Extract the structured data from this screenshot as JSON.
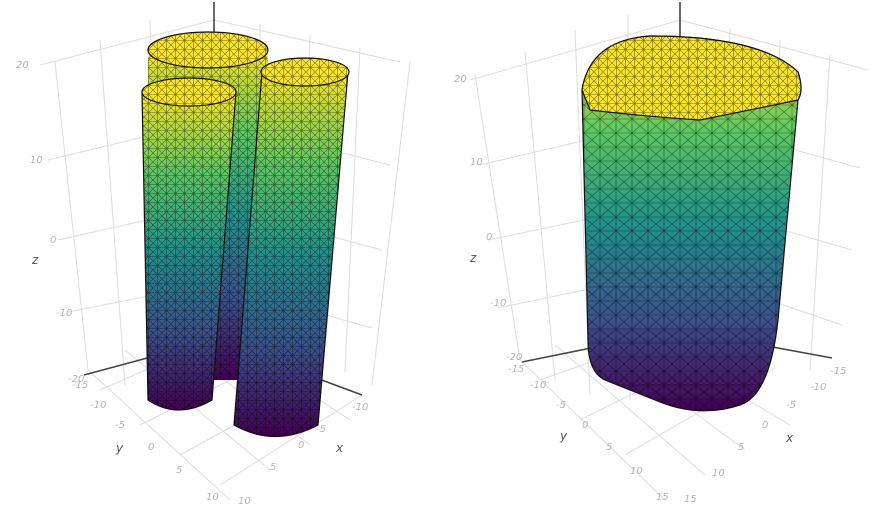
{
  "panels": [
    {
      "id": "left",
      "axes": {
        "z": {
          "label": "z",
          "ticks": [
            "20",
            "10",
            "0",
            "-10",
            "-20"
          ]
        },
        "y": {
          "label": "y",
          "ticks": [
            "-15",
            "-10",
            "-5",
            "0",
            "5",
            "10"
          ]
        },
        "x": {
          "label": "x",
          "ticks": [
            "-10",
            "-5",
            "0",
            "5",
            "10"
          ]
        }
      },
      "surface": "three cylinders",
      "colorscale": [
        "#440154",
        "#3b528b",
        "#21918c",
        "#5ec962",
        "#fde725"
      ]
    },
    {
      "id": "right",
      "axes": {
        "z": {
          "label": "z",
          "ticks": [
            "20",
            "10",
            "0",
            "-10",
            "-20"
          ]
        },
        "y": {
          "label": "y",
          "ticks": [
            "-15",
            "-10",
            "-5",
            "0",
            "5",
            "10",
            "15"
          ]
        },
        "x": {
          "label": "x",
          "ticks": [
            "-15",
            "-10",
            "-5",
            "0",
            "5",
            "10",
            "15"
          ]
        }
      },
      "surface": "merged rounded prism",
      "colorscale": [
        "#440154",
        "#3b528b",
        "#21918c",
        "#5ec962",
        "#fde725"
      ]
    }
  ]
}
